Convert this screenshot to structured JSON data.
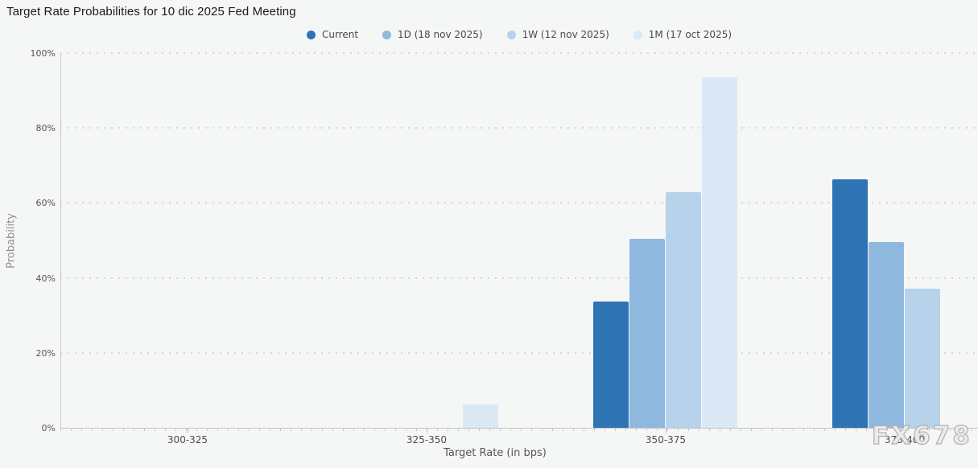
{
  "title": "Target Rate Probabilities for 10 dic 2025 Fed Meeting",
  "watermark": "FX678",
  "colors": {
    "current": "#2e73b4",
    "one_day": "#8fb8de",
    "one_week": "#b7d2eb",
    "one_month": "#dbe8f6",
    "background": "#f5f6f6",
    "gridline": "#d7d7d7",
    "axis": "#c4c4c4"
  },
  "chart_data": {
    "type": "bar",
    "title": "Target Rate Probabilities for 10 dic 2025 Fed Meeting",
    "categories": [
      "300-325",
      "325-350",
      "350-375",
      "375-400"
    ],
    "series": [
      {
        "name": "Current",
        "color": "#2e73b4",
        "values": [
          0,
          0,
          33.6,
          66.4
        ]
      },
      {
        "name": "1D (18 nov 2025)",
        "color": "#8fb8de",
        "values": [
          0,
          0,
          50.4,
          49.6
        ]
      },
      {
        "name": "1W (12 nov 2025)",
        "color": "#b7d2eb",
        "values": [
          0,
          0,
          62.9,
          37.1
        ]
      },
      {
        "name": "1M (17 oct 2025)",
        "color": "#dbe8f6",
        "values": [
          0,
          6.3,
          93.6,
          0
        ]
      }
    ],
    "xlabel": "Target Rate (in bps)",
    "ylabel": "Probability",
    "ylim": [
      0,
      100
    ],
    "ytick_labels": [
      "0%",
      "20%",
      "40%",
      "60%",
      "80%",
      "100%"
    ],
    "ytick_step": 20,
    "grid": "horizontal-dotted",
    "legend_position": "top-center"
  }
}
